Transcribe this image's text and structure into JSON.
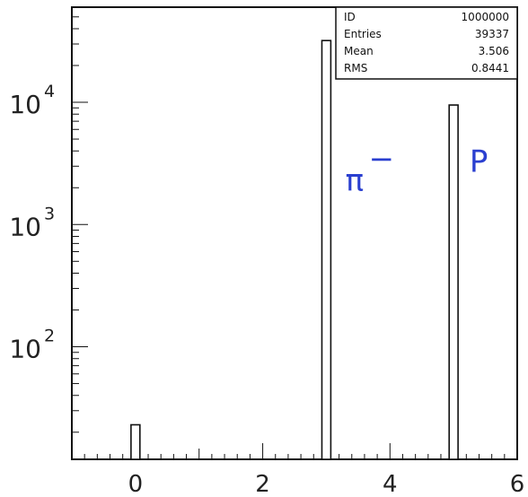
{
  "chart_data": {
    "type": "bar",
    "title": "",
    "xlabel": "",
    "ylabel": "",
    "x_range": [
      -1,
      6
    ],
    "y_scale": "log",
    "y_range": [
      12,
      60000
    ],
    "x_ticks": [
      0,
      2,
      4,
      6
    ],
    "y_ticks": [
      {
        "value": 100,
        "base": "10",
        "exp": "2"
      },
      {
        "value": 1000,
        "base": "10",
        "exp": "3"
      },
      {
        "value": 10000,
        "base": "10",
        "exp": "4"
      }
    ],
    "bin_width": 0.14,
    "bars": [
      {
        "x": 0,
        "value": 23
      },
      {
        "x": 3,
        "value": 32000
      },
      {
        "x": 5,
        "value": 9500
      }
    ],
    "grid": false,
    "stats_box": {
      "position": "top-right",
      "rows": [
        {
          "label": "ID",
          "value": "1000000"
        },
        {
          "label": "Entries",
          "value": "39337"
        },
        {
          "label": "Mean",
          "value": "3.506"
        },
        {
          "label": "RMS",
          "value": "0.8441"
        }
      ]
    },
    "annotations": [
      {
        "text": "π",
        "superscript": "−",
        "x": 3.3,
        "y": 1900,
        "color": "#2a3fd0"
      },
      {
        "text": "P",
        "x": 5.25,
        "y": 2700,
        "color": "#2a3fd0"
      }
    ]
  }
}
